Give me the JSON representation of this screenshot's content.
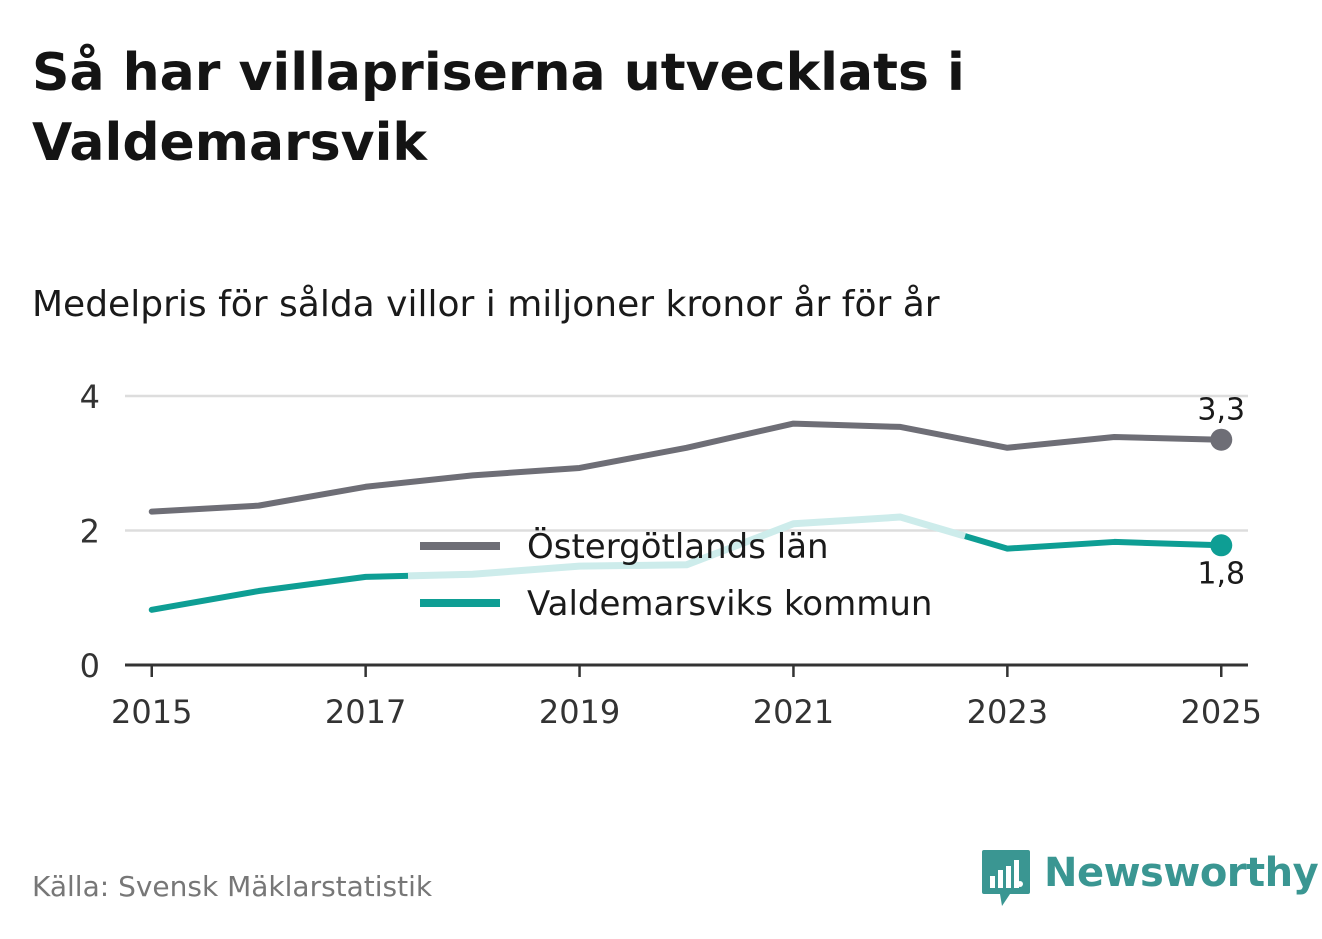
{
  "title": "Så har villapriserna utvecklats i Valdemarsvik",
  "subtitle": "Medelpris för sålda villor i miljoner kronor år för år",
  "source": "Källa: Svensk Mäklarstatistik",
  "brand": {
    "name": "Newsworthy",
    "icon": "newsworthy-logo-icon"
  },
  "colors": {
    "county": "#6e6e76",
    "municipality": "#0e9e94",
    "municipality_faded": "#cdeceb",
    "grid": "#dddddd",
    "axis": "#333333",
    "brand": "#3a9692"
  },
  "chart_data": {
    "type": "line",
    "title": "Medelpris för sålda villor i miljoner kronor år för år",
    "x": [
      2015,
      2016,
      2017,
      2018,
      2019,
      2020,
      2021,
      2022,
      2023,
      2024,
      2025
    ],
    "xticks": [
      "2015",
      "2017",
      "2019",
      "2021",
      "2023",
      "2025"
    ],
    "yticks": [
      "0",
      "2",
      "4"
    ],
    "ylim": [
      0,
      4
    ],
    "xlim": [
      2014.75,
      2025.25
    ],
    "grid": true,
    "legend_position": "center",
    "series": [
      {
        "name": "Östergötlands län",
        "values": [
          2.28,
          2.37,
          2.65,
          2.82,
          2.93,
          3.23,
          3.59,
          3.54,
          3.23,
          3.39,
          3.35
        ],
        "end_label": "3,3"
      },
      {
        "name": "Valdemarsviks kommun",
        "values": [
          0.82,
          1.1,
          1.31,
          1.35,
          1.47,
          1.49,
          2.1,
          2.2,
          1.73,
          1.83,
          1.78
        ],
        "end_label": "1,8"
      }
    ]
  }
}
